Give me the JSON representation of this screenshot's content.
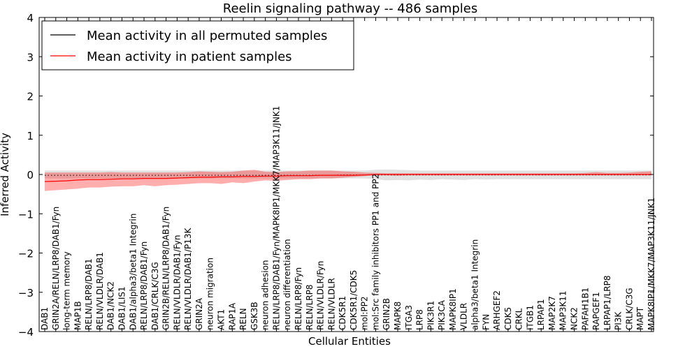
{
  "chart_data": {
    "type": "line",
    "title": "Reelin signaling pathway -- 486 samples",
    "xlabel": "Cellular Entities",
    "ylabel": "Inferred Activity",
    "ylim": [
      -4,
      4
    ],
    "yticks": [
      -4,
      -3,
      -2,
      -1,
      0,
      1,
      2,
      3,
      4
    ],
    "ytick_labels": [
      "−4",
      "−3",
      "−2",
      "−1",
      "0",
      "1",
      "2",
      "3",
      "4"
    ],
    "legend_position": "top-left",
    "categories": [
      "DAB1",
      "GRIN2A/RELN/LRP8/DAB1/Fyn",
      "long-term memory",
      "MAP1B",
      "RELN/LRP8/DAB1",
      "RELN/VLDLR/DAB1",
      "DAB1/NCK2",
      "DAB1/LIS1",
      "DAB1/alpha3/beta1 Integrin",
      "RELN/LRP8/DAB1/Fyn",
      "DAB1/CRLK/C3G",
      "GRIN2B/RELN/LRP8/DAB1/Fyn",
      "RELN/VLDLR/DAB1/Fyn",
      "RELN/VLDLR/DAB1/P13K",
      "GRIN2A",
      "neuron migration",
      "AKT1",
      "RAP1A",
      "RELN",
      "GSK3B",
      "neuron adhesion",
      "RELN/LRP8/DAB1/Fyn/MAPK8IP1/MKK7/MAP3K11/JNK1",
      "neuron differentiation",
      "RELN/LRP8/Fyn",
      "RELN/LRP8",
      "RELN/VLDLR/Fyn",
      "RELN/VLDLR",
      "CDK5R1",
      "CDK5R1/CDK5",
      "mol:PP2",
      "mol:Src family inhibitors PP1 and PP2",
      "GRIN2B",
      "MAPK8",
      "ITGA3",
      "LRP8",
      "PIK3R1",
      "PIK3CA",
      "MAPK8IP1",
      "VLDLR",
      "alpha3/beta1 Integrin",
      "FYN",
      "ARHGEF2",
      "CDK5",
      "CRKL",
      "ITGB1",
      "LRPAP1",
      "MAP2K7",
      "MAP3K11",
      "NCK2",
      "PAFAH1B1",
      "RAPGEF1",
      "LRPAP1/LRP8",
      "PI3K",
      "CRLK/C3G",
      "MAPT",
      "MAPK8IP1/MKK7/MAP3K11/JNK1"
    ],
    "series": [
      {
        "name": "Mean activity in all permuted samples",
        "color": "#000000",
        "values": [
          -0.02,
          -0.02,
          -0.02,
          -0.02,
          -0.02,
          -0.02,
          -0.02,
          -0.02,
          -0.02,
          -0.02,
          -0.02,
          -0.02,
          -0.02,
          -0.02,
          -0.02,
          -0.02,
          -0.02,
          -0.02,
          -0.02,
          -0.02,
          -0.02,
          -0.02,
          -0.02,
          -0.02,
          -0.02,
          -0.02,
          -0.02,
          -0.01,
          -0.01,
          -0.01,
          -0.01,
          -0.01,
          -0.01,
          -0.01,
          -0.01,
          -0.01,
          -0.01,
          -0.01,
          -0.01,
          -0.01,
          -0.01,
          -0.01,
          -0.01,
          -0.01,
          -0.01,
          -0.01,
          -0.01,
          -0.01,
          -0.01,
          -0.01,
          -0.01,
          -0.01,
          -0.01,
          -0.01,
          -0.01,
          -0.01
        ],
        "band_lower": [
          -0.1,
          -0.1,
          -0.1,
          -0.1,
          -0.1,
          -0.1,
          -0.1,
          -0.1,
          -0.1,
          -0.1,
          -0.1,
          -0.1,
          -0.1,
          -0.1,
          -0.1,
          -0.1,
          -0.1,
          -0.1,
          -0.1,
          -0.1,
          -0.1,
          -0.1,
          -0.1,
          -0.1,
          -0.1,
          -0.1,
          -0.1,
          -0.1,
          -0.1,
          -0.1,
          -0.12,
          -0.15,
          -0.14,
          -0.15,
          -0.13,
          -0.14,
          -0.12,
          -0.13,
          -0.14,
          -0.12,
          -0.13,
          -0.12,
          -0.12,
          -0.12,
          -0.12,
          -0.12,
          -0.12,
          -0.12,
          -0.12,
          -0.12,
          -0.12,
          -0.12,
          -0.12,
          -0.12,
          -0.12,
          -0.12
        ],
        "band_upper": [
          0.1,
          0.1,
          0.1,
          0.1,
          0.1,
          0.1,
          0.1,
          0.1,
          0.1,
          0.1,
          0.1,
          0.1,
          0.1,
          0.1,
          0.1,
          0.1,
          0.1,
          0.1,
          0.1,
          0.1,
          0.1,
          0.1,
          0.1,
          0.1,
          0.1,
          0.1,
          0.1,
          0.1,
          0.1,
          0.1,
          0.12,
          0.13,
          0.12,
          0.11,
          0.1,
          0.1,
          0.1,
          0.1,
          0.1,
          0.1,
          0.1,
          0.1,
          0.1,
          0.1,
          0.1,
          0.1,
          0.1,
          0.1,
          0.1,
          0.1,
          0.1,
          0.1,
          0.1,
          0.1,
          0.1,
          0.1
        ]
      },
      {
        "name": "Mean activity in patient samples",
        "color": "#ff0000",
        "values": [
          -0.18,
          -0.17,
          -0.16,
          -0.14,
          -0.13,
          -0.13,
          -0.12,
          -0.11,
          -0.11,
          -0.1,
          -0.1,
          -0.1,
          -0.09,
          -0.08,
          -0.07,
          -0.07,
          -0.06,
          -0.06,
          -0.05,
          -0.05,
          -0.04,
          -0.04,
          -0.03,
          -0.03,
          -0.03,
          -0.02,
          -0.02,
          -0.02,
          -0.02,
          -0.01,
          0.0,
          0.0,
          0.0,
          0.0,
          0.0,
          0.0,
          0.0,
          0.0,
          0.0,
          0.0,
          0.0,
          0.0,
          0.0,
          0.0,
          0.0,
          0.0,
          0.0,
          0.0,
          0.0,
          0.0,
          0.0,
          0.0,
          0.0,
          0.0,
          0.0,
          0.0
        ],
        "band_lower": [
          -0.42,
          -0.4,
          -0.38,
          -0.36,
          -0.33,
          -0.33,
          -0.31,
          -0.3,
          -0.3,
          -0.27,
          -0.3,
          -0.27,
          -0.26,
          -0.24,
          -0.22,
          -0.22,
          -0.24,
          -0.2,
          -0.22,
          -0.18,
          -0.15,
          -0.16,
          -0.14,
          -0.12,
          -0.12,
          -0.1,
          -0.1,
          -0.08,
          -0.06,
          -0.04,
          -0.02,
          -0.02,
          -0.03,
          -0.02,
          -0.02,
          -0.02,
          -0.02,
          -0.02,
          -0.02,
          -0.02,
          -0.02,
          -0.02,
          -0.02,
          -0.02,
          -0.02,
          -0.02,
          -0.02,
          -0.02,
          -0.02,
          -0.02,
          -0.02,
          -0.02,
          -0.02,
          -0.02,
          -0.02,
          -0.02
        ],
        "band_upper": [
          0.05,
          0.05,
          0.05,
          0.05,
          0.05,
          0.05,
          0.06,
          0.05,
          0.05,
          0.05,
          0.05,
          0.05,
          0.05,
          0.06,
          0.08,
          0.07,
          0.06,
          0.07,
          0.1,
          0.12,
          0.07,
          0.06,
          0.08,
          0.08,
          0.1,
          0.1,
          0.1,
          0.08,
          0.07,
          0.05,
          0.04,
          0.03,
          0.03,
          0.03,
          0.03,
          0.03,
          0.03,
          0.03,
          0.03,
          0.03,
          0.03,
          0.03,
          0.03,
          0.03,
          0.03,
          0.03,
          0.03,
          0.03,
          0.03,
          0.04,
          0.06,
          0.04,
          0.04,
          0.05,
          0.07,
          0.08
        ]
      }
    ]
  }
}
